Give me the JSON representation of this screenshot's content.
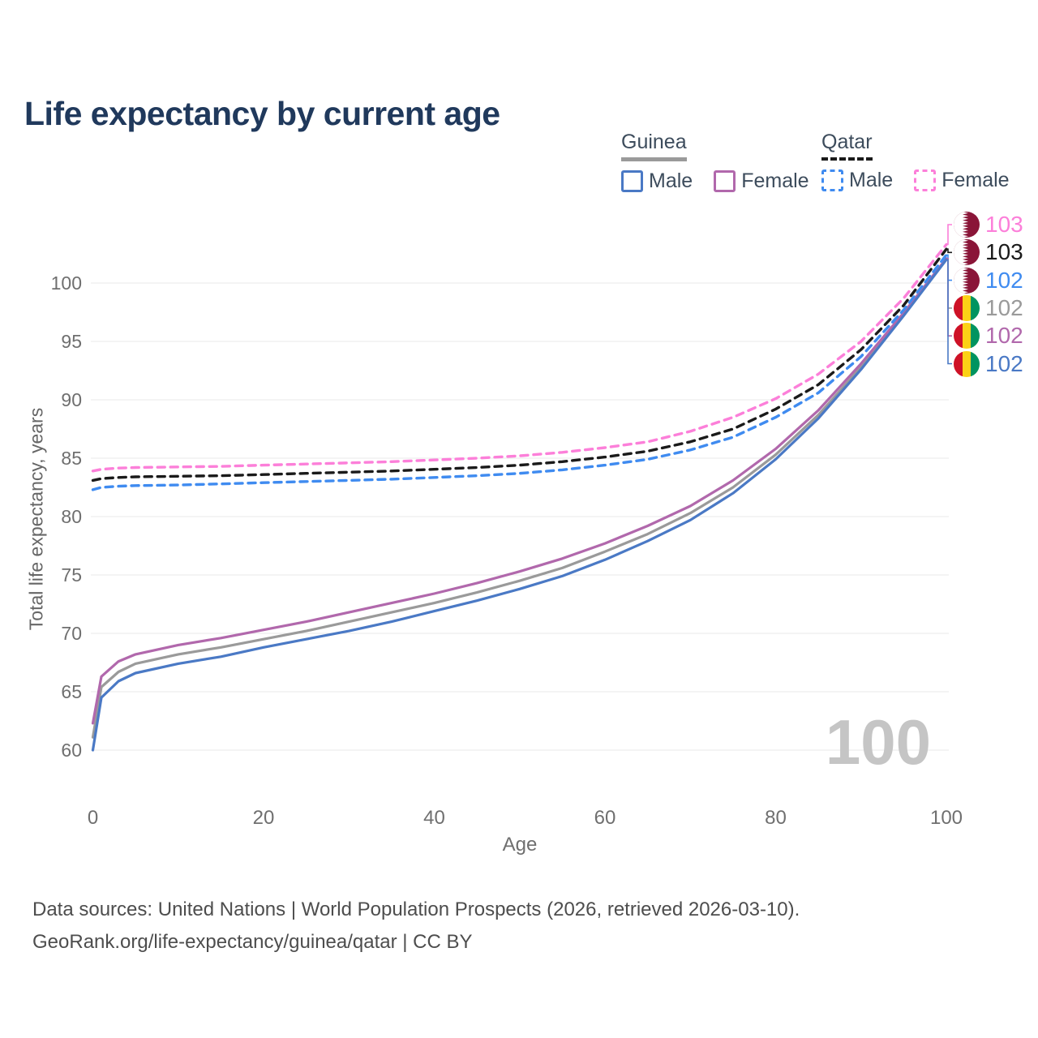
{
  "title": "Life expectancy by current age",
  "legend": {
    "groups": [
      {
        "name": "Guinea",
        "underline": "solid",
        "underline_series": "guinea_both",
        "items": [
          {
            "label": "Male",
            "series": "guinea_male"
          },
          {
            "label": "Female",
            "series": "guinea_female"
          }
        ]
      },
      {
        "name": "Qatar",
        "underline": "dashed",
        "underline_series": "qatar_both",
        "items": [
          {
            "label": "Male",
            "series": "qatar_male"
          },
          {
            "label": "Female",
            "series": "qatar_female"
          }
        ]
      }
    ]
  },
  "axes": {
    "x": {
      "label": "Age",
      "ticks": [
        0,
        20,
        40,
        60,
        80,
        100
      ],
      "range": [
        0,
        100
      ]
    },
    "y": {
      "label": "Total life expectancy, years",
      "ticks": [
        60,
        65,
        70,
        75,
        80,
        85,
        90,
        95,
        100
      ],
      "range_displayed": [
        60,
        103.5
      ]
    }
  },
  "watermark": "100",
  "chart_data": {
    "type": "line",
    "title": "Life expectancy by current age",
    "xlabel": "Age",
    "ylabel": "Total life expectancy, years",
    "xlim": [
      0,
      100
    ],
    "ylim": [
      60,
      103.5
    ],
    "grid": "horizontal-only",
    "legend_position": "top-right",
    "x": [
      0,
      1,
      3,
      5,
      10,
      15,
      20,
      25,
      30,
      35,
      40,
      45,
      50,
      55,
      60,
      65,
      70,
      75,
      80,
      85,
      90,
      95,
      100
    ],
    "series": [
      {
        "id": "guinea_both",
        "name": "Guinea Both sexes",
        "country": "Guinea",
        "sex": "Both",
        "color": "#9a9a9a",
        "dashed": false,
        "values": [
          61.1,
          65.4,
          66.7,
          67.4,
          68.2,
          68.8,
          69.5,
          70.2,
          71.0,
          71.8,
          72.6,
          73.5,
          74.5,
          75.6,
          77.0,
          78.5,
          80.3,
          82.5,
          85.3,
          88.7,
          92.8,
          97.3,
          102.05
        ]
      },
      {
        "id": "guinea_female",
        "name": "Guinea Female",
        "country": "Guinea",
        "sex": "Female",
        "color": "#b168ac",
        "dashed": false,
        "values": [
          62.3,
          66.3,
          67.6,
          68.2,
          69.0,
          69.6,
          70.3,
          71.0,
          71.8,
          72.6,
          73.4,
          74.3,
          75.3,
          76.4,
          77.7,
          79.2,
          80.9,
          83.1,
          85.8,
          89.1,
          93.1,
          97.45,
          102.1
        ]
      },
      {
        "id": "guinea_male",
        "name": "Guinea Male",
        "country": "Guinea",
        "sex": "Male",
        "color": "#4a79c5",
        "dashed": false,
        "values": [
          60.0,
          64.5,
          65.9,
          66.6,
          67.4,
          68.0,
          68.8,
          69.5,
          70.2,
          71.0,
          71.9,
          72.8,
          73.8,
          74.9,
          76.3,
          77.9,
          79.7,
          82.0,
          84.9,
          88.4,
          92.6,
          97.2,
          102.0
        ]
      },
      {
        "id": "qatar_male",
        "name": "Qatar Male",
        "country": "Qatar",
        "sex": "Male",
        "color": "#3f8bf0",
        "dashed": true,
        "values": [
          82.3,
          82.5,
          82.6,
          82.65,
          82.7,
          82.8,
          82.9,
          83.0,
          83.1,
          83.2,
          83.35,
          83.5,
          83.7,
          84.0,
          84.4,
          84.9,
          85.7,
          86.8,
          88.5,
          90.6,
          93.7,
          97.7,
          102.4
        ]
      },
      {
        "id": "qatar_both",
        "name": "Qatar Both sexes",
        "country": "Qatar",
        "sex": "Both",
        "color": "#1a1a1a",
        "dashed": true,
        "values": [
          83.1,
          83.25,
          83.35,
          83.4,
          83.45,
          83.5,
          83.6,
          83.7,
          83.8,
          83.9,
          84.05,
          84.2,
          84.4,
          84.7,
          85.1,
          85.6,
          86.4,
          87.5,
          89.2,
          91.3,
          94.3,
          98.1,
          102.9
        ]
      },
      {
        "id": "qatar_female",
        "name": "Qatar Female",
        "country": "Qatar",
        "sex": "Female",
        "color": "#fc7fd9",
        "dashed": true,
        "values": [
          83.9,
          84.05,
          84.15,
          84.2,
          84.25,
          84.3,
          84.4,
          84.5,
          84.6,
          84.7,
          84.85,
          85.0,
          85.2,
          85.5,
          85.9,
          86.4,
          87.3,
          88.5,
          90.1,
          92.2,
          95.0,
          98.7,
          103.3
        ]
      }
    ],
    "end_labels": [
      {
        "value": "103",
        "flag": "qatar",
        "series": "qatar_female"
      },
      {
        "value": "103",
        "flag": "qatar",
        "series": "qatar_both"
      },
      {
        "value": "102",
        "flag": "qatar",
        "series": "qatar_male"
      },
      {
        "value": "102",
        "flag": "guinea",
        "series": "guinea_both"
      },
      {
        "value": "102",
        "flag": "guinea",
        "series": "guinea_female"
      },
      {
        "value": "102",
        "flag": "guinea",
        "series": "guinea_male"
      }
    ],
    "flag_colors": {
      "qatar": {
        "maroon": "#8a1538",
        "white": "#ffffff"
      },
      "guinea": {
        "red": "#ce1126",
        "yellow": "#fcd116",
        "green": "#009460"
      }
    }
  },
  "footer": {
    "line1": "Data sources: United Nations | World Population Prospects (2026, retrieved 2026-03-10).",
    "line2": "GeoRank.org/life-expectancy/guinea/qatar | CC BY"
  }
}
